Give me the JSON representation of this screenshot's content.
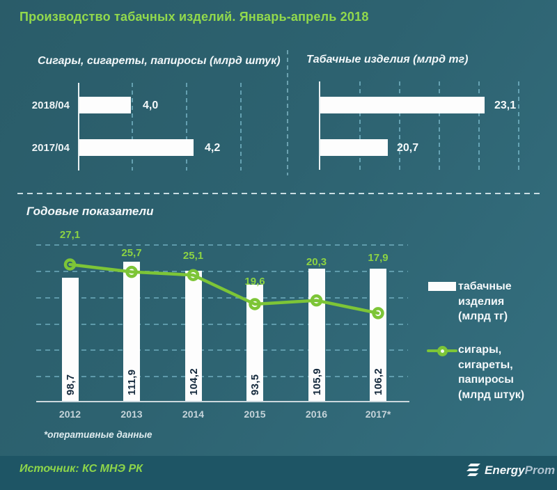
{
  "page_title": "Производство табачных изделий. Январь-апрель 2018",
  "colors": {
    "background_top": "#2a5c69",
    "background_bottom": "#357080",
    "footer_background": "#1e5565",
    "title_green": "#92d94c",
    "line_green": "#7dc537",
    "point_label_green": "#8cd343",
    "bar_white": "#fdfdfd",
    "bar_value_text": "#14293c",
    "year_label": "#c6d4da",
    "gridline": "#87c8da"
  },
  "chart_data": [
    {
      "type": "bar",
      "orientation": "horizontal",
      "title": "Сигары, сигареты, папиросы (млрд штук)",
      "categories": [
        "2018/04",
        "2017/04"
      ],
      "values": [
        4.0,
        4.2
      ],
      "labels": [
        "4,0",
        "4,2"
      ],
      "unit": "млрд штук",
      "grid": "dashed-vertical"
    },
    {
      "type": "bar",
      "orientation": "horizontal",
      "title": "Табачные изделия (млрд тг)",
      "categories": [
        "2018/04",
        "2017/04"
      ],
      "values": [
        23.1,
        20.7
      ],
      "labels": [
        "23,1",
        "20,7"
      ],
      "unit": "млрд тг",
      "grid": "dashed-vertical"
    },
    {
      "type": "combo",
      "title": "Годовые показатели",
      "categories": [
        "2012",
        "2013",
        "2014",
        "2015",
        "2016",
        "2017*"
      ],
      "series": [
        {
          "name": "табачные изделия (млрд тг)",
          "type": "bar",
          "values": [
            98.7,
            111.9,
            104.2,
            93.5,
            105.9,
            106.2
          ],
          "labels": [
            "98,7",
            "111,9",
            "104,2",
            "93,5",
            "105,9",
            "106,2"
          ]
        },
        {
          "name": "сигары, сигареты, папиросы (млрд штук)",
          "type": "line",
          "values": [
            27.1,
            25.7,
            25.1,
            19.6,
            20.3,
            17.9
          ],
          "labels": [
            "27,1",
            "25,7",
            "25,1",
            "19,6",
            "20,3",
            "17,9"
          ]
        }
      ],
      "footnote": "*оперативные данные",
      "grid": "dashed-horizontal",
      "legend_position": "right"
    }
  ],
  "annual": {
    "legend": {
      "bar_lines": [
        "табачные",
        "изделия",
        "(млрд тг)"
      ],
      "line_lines": [
        "сигары,",
        "сигареты,",
        "папиросы",
        "(млрд штук)"
      ]
    }
  },
  "footer": {
    "source": "Источник: КС МНЭ РК",
    "logo_bold": "Energy",
    "logo_light": "Prom"
  }
}
